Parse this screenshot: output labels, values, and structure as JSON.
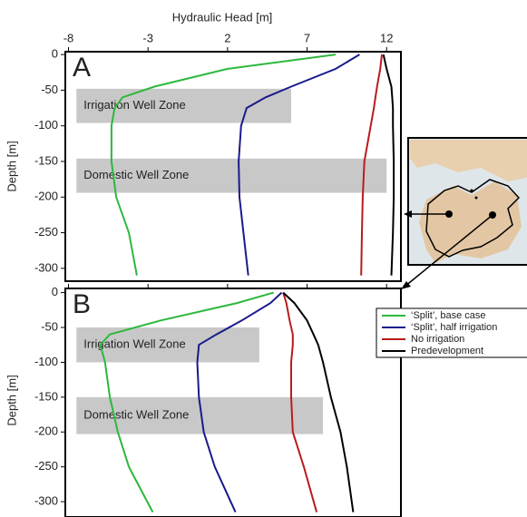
{
  "chart_data": [
    {
      "type": "line",
      "panel": "A",
      "xlabel": "Hydraulic Head [m]",
      "ylabel": "Depth [m]",
      "xlim": [
        -8.2,
        12.9
      ],
      "xticks": [
        -8,
        -3,
        2,
        7,
        12
      ],
      "ylim": [
        -318,
        4
      ],
      "yticks": [
        0,
        -50,
        -100,
        -150,
        -200,
        -250,
        -300
      ],
      "depths": [
        0,
        -20,
        -45,
        -60,
        -75,
        -100,
        -150,
        -200,
        -250,
        -310
      ],
      "zones": [
        {
          "label": "Irrigation Well Zone",
          "x": [
            -7.5,
            6
          ],
          "y": [
            -48,
            -96
          ]
        },
        {
          "label": "Domestic Well Zone",
          "x": [
            -7.5,
            12
          ],
          "y": [
            -146,
            -194
          ]
        }
      ],
      "series": [
        {
          "color": "#2db83d",
          "values": [
            8.8,
            2,
            -2.6,
            -4.6,
            -5.1,
            -5.3,
            -5.3,
            -5.0,
            -4.2,
            -3.7
          ]
        },
        {
          "color": "#1a1a8c",
          "values": [
            10.3,
            8.8,
            6,
            4.4,
            3.2,
            2.85,
            2.7,
            2.75,
            3.0,
            3.3
          ]
        },
        {
          "color": "#b81c1c",
          "values": [
            11.7,
            11.6,
            11.4,
            11.3,
            11.2,
            11.0,
            10.6,
            10.5,
            10.45,
            10.4
          ]
        },
        {
          "color": "#000000",
          "values": [
            11.8,
            12.0,
            12.3,
            12.35,
            12.4,
            12.4,
            12.45,
            12.45,
            12.4,
            12.3
          ]
        }
      ]
    },
    {
      "type": "line",
      "panel": "B",
      "ylabel": "Depth [m]",
      "xlim": [
        -8.2,
        12.9
      ],
      "xticks": [
        -8,
        -3,
        2,
        7,
        12
      ],
      "ylim": [
        -322,
        6
      ],
      "yticks": [
        0,
        -50,
        -100,
        -150,
        -200,
        -250,
        -300
      ],
      "depths": [
        0,
        -15,
        -40,
        -60,
        -75,
        -100,
        -150,
        -200,
        -250,
        -315
      ],
      "zones": [
        {
          "label": "Irrigation Well Zone",
          "x": [
            -7.5,
            4
          ],
          "y": [
            -50,
            -100
          ]
        },
        {
          "label": "Domestic Well Zone",
          "x": [
            -7.5,
            8
          ],
          "y": [
            -150,
            -203
          ]
        }
      ],
      "series": [
        {
          "name": "‘Split’, base case",
          "color": "#2db83d",
          "values": [
            4.9,
            2.6,
            -2.2,
            -5.4,
            -6.0,
            -5.7,
            -5.4,
            -4.9,
            -4.2,
            -2.7
          ]
        },
        {
          "name": "‘Split’, half irrigation",
          "color": "#1a1a8c",
          "values": [
            5.4,
            4.7,
            2.9,
            1.3,
            0.2,
            0.1,
            0.2,
            0.5,
            1.2,
            2.5
          ]
        },
        {
          "name": "No irrigation",
          "color": "#b81c1c",
          "values": [
            5.5,
            5.7,
            5.9,
            6.1,
            6.1,
            6.0,
            6.0,
            6.1,
            6.8,
            7.6
          ]
        },
        {
          "name": "Predevelopment",
          "color": "#000000",
          "values": [
            5.5,
            6.2,
            7.0,
            7.4,
            7.7,
            8.0,
            8.5,
            9.1,
            9.5,
            9.9
          ]
        }
      ]
    }
  ]
}
